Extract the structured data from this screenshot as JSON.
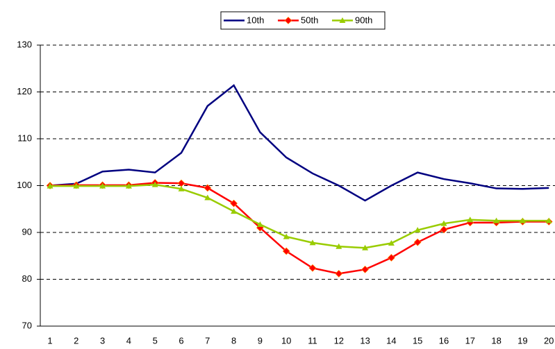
{
  "chart_data": {
    "type": "line",
    "categories": [
      "1",
      "2",
      "3",
      "4",
      "5",
      "6",
      "7",
      "8",
      "9",
      "10",
      "11",
      "12",
      "13",
      "14",
      "15",
      "16",
      "17",
      "18",
      "19",
      "20"
    ],
    "series": [
      {
        "name": "10th",
        "color": "#000080",
        "marker": "none",
        "values": [
          100,
          100.4,
          103,
          103.4,
          102.8,
          107,
          117,
          121.4,
          111.4,
          106,
          102.6,
          100,
          96.8,
          100,
          102.8,
          101.4,
          100.5,
          99.4,
          99.3,
          99.5
        ]
      },
      {
        "name": "50th",
        "color": "#ff0000",
        "marker": "diamond",
        "values": [
          100,
          100.1,
          100.1,
          100.1,
          100.6,
          100.5,
          99.5,
          96.2,
          91,
          86,
          82.4,
          81.2,
          82.1,
          84.6,
          87.9,
          90.6,
          92.1,
          92.1,
          92.3,
          92.3
        ]
      },
      {
        "name": "90th",
        "color": "#99cc00",
        "marker": "triangle",
        "values": [
          99.9,
          99.9,
          99.9,
          99.9,
          100.2,
          99.3,
          97.4,
          94.5,
          91.7,
          89.1,
          87.8,
          87,
          86.7,
          87.7,
          90.5,
          91.9,
          92.7,
          92.5,
          92.5,
          92.5
        ]
      }
    ],
    "ylim": [
      70,
      130
    ],
    "yticks": [
      70,
      80,
      90,
      100,
      110,
      120,
      130
    ],
    "grid": true,
    "legend": "top"
  }
}
